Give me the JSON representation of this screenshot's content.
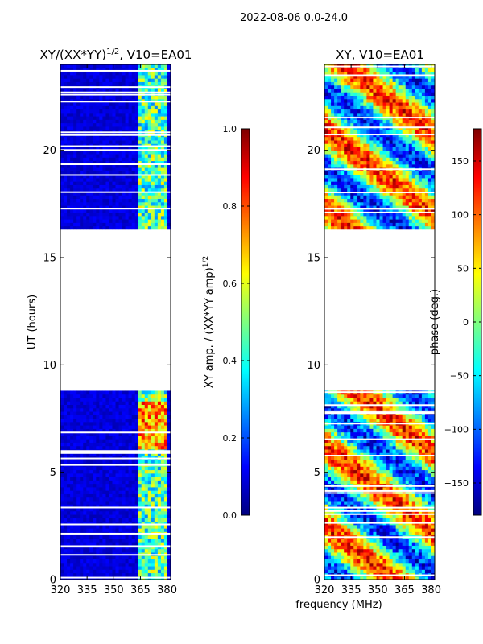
{
  "figure": {
    "suptitle": "2022-08-06 0.0-24.0",
    "shared_xlabel": "frequency (MHz)"
  },
  "chart_data": [
    {
      "type": "heatmap",
      "title": "XY/(XX*YY)^1/2, V10=EA01",
      "title_main": "XY/(XX*YY)",
      "title_exp": "1/2",
      "title_tail": ", V10=EA01",
      "xlabel": "frequency (MHz)",
      "ylabel": "UT (hours)",
      "xlim": [
        320,
        382
      ],
      "ylim": [
        0,
        24
      ],
      "xticks": [
        320,
        335,
        350,
        365,
        380
      ],
      "yticks": [
        0,
        5,
        10,
        15,
        20
      ],
      "data_gap_hours": [
        8.8,
        16.3
      ],
      "colorbar": {
        "label": "XY amp. / (XX*YY amp)^1/2",
        "label_main": "XY amp. / (XX*YY amp)",
        "label_exp": "1/2",
        "range": [
          0.0,
          1.0
        ],
        "ticks": [
          0.0,
          0.2,
          0.4,
          0.6,
          0.8,
          1.0
        ],
        "tick_labels": [
          "0.0",
          "0.2",
          "0.4",
          "0.6",
          "0.8",
          "1.0"
        ],
        "colormap": "jet"
      }
    },
    {
      "type": "heatmap",
      "title": "XY, V10=EA01",
      "xlabel": "frequency (MHz)",
      "ylabel": "",
      "xlim": [
        320,
        382
      ],
      "ylim": [
        0,
        24
      ],
      "xticks": [
        320,
        335,
        350,
        365,
        380
      ],
      "yticks": [
        0,
        5,
        10,
        15,
        20
      ],
      "data_gap_hours": [
        8.8,
        16.3
      ],
      "colorbar": {
        "label": "phase (deg.)",
        "range": [
          -180,
          180
        ],
        "ticks": [
          -150,
          -100,
          -50,
          0,
          50,
          100,
          150
        ],
        "tick_labels": [
          "−150",
          "−100",
          "−50",
          "0",
          "50",
          "100",
          "150"
        ],
        "colormap": "jet"
      }
    }
  ]
}
